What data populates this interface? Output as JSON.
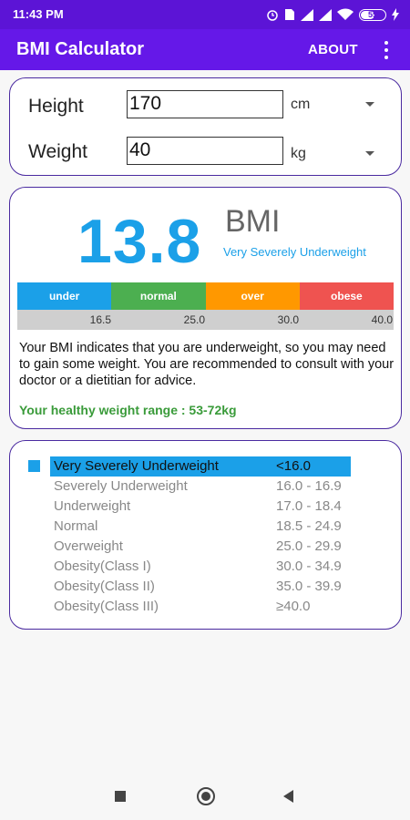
{
  "status_bar": {
    "time": "11:43 PM",
    "battery": "55",
    "battery_level": 0.55,
    "icons": [
      "alarm-icon",
      "sim-icon",
      "signal-icon",
      "signal-icon",
      "wifi-icon",
      "battery-icon",
      "charging-icon"
    ]
  },
  "app_bar": {
    "title": "BMI Calculator",
    "about_label": "ABOUT",
    "overflow_icon": "more-vert-icon"
  },
  "input": {
    "height_label": "Height",
    "height_value": "170",
    "height_unit": "cm",
    "weight_label": "Weight",
    "weight_value": "40",
    "weight_unit": "kg"
  },
  "result": {
    "bmi": "13.8",
    "bmi_label": "BMI",
    "category": "Very Severely Underweight",
    "scale": [
      {
        "label": "under",
        "color": "#1ba0e8"
      },
      {
        "label": "normal",
        "color": "#4caf50"
      },
      {
        "label": "over",
        "color": "#ff9800"
      },
      {
        "label": "obese",
        "color": "#ef5350"
      }
    ],
    "ticks": [
      "16.5",
      "25.0",
      "30.0",
      "40.0"
    ],
    "description": "Your BMI indicates that you are underweight, so you may need to gain some weight. You are recommended to consult with your doctor or a dietitian for advice.",
    "healthy_range": "Your healthy weight range : 53-72kg"
  },
  "table": {
    "rows": [
      {
        "category": "Very Severely Underweight",
        "range": "<16.0",
        "selected": true
      },
      {
        "category": "Severely Underweight",
        "range": "16.0 - 16.9"
      },
      {
        "category": "Underweight",
        "range": "17.0 - 18.4"
      },
      {
        "category": "Normal",
        "range": "18.5 - 24.9"
      },
      {
        "category": "Overweight",
        "range": "25.0 - 29.9"
      },
      {
        "category": "Obesity(Class I)",
        "range": "30.0 - 34.9"
      },
      {
        "category": "Obesity(Class II)",
        "range": "35.0 - 39.9"
      },
      {
        "category": "Obesity(Class III)",
        "range": "≥40.0"
      }
    ]
  },
  "colors": {
    "primary": "#6518e8",
    "primary_dark": "#5c14d6",
    "accent": "#1ba0e8",
    "healthy_text": "#3a9b3a"
  }
}
